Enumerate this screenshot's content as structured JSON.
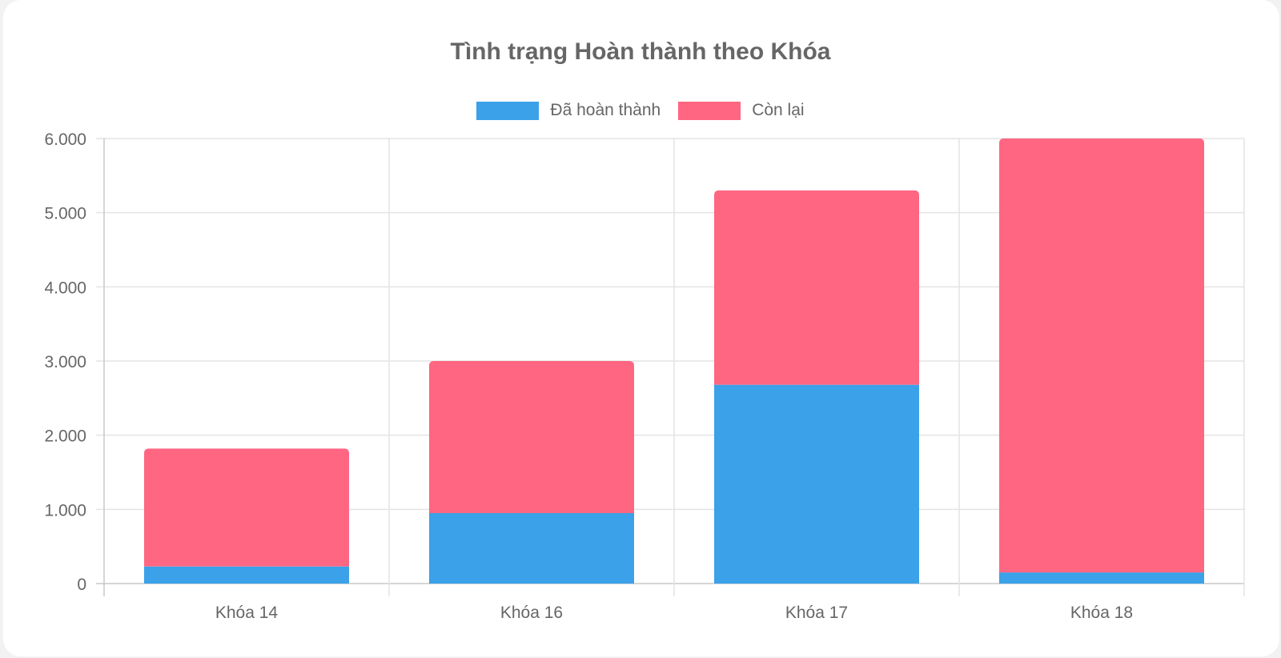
{
  "chart_data": {
    "type": "bar",
    "stacked": true,
    "title": "Tình trạng Hoàn thành theo Khóa",
    "categories": [
      "Khóa 14",
      "Khóa 16",
      "Khóa 17",
      "Khóa 18"
    ],
    "series": [
      {
        "name": "Đã hoàn thành",
        "color": "#3ba1e8",
        "values": [
          230,
          950,
          2680,
          150
        ]
      },
      {
        "name": "Còn lại",
        "color": "#ff6682",
        "values": [
          1590,
          2050,
          2620,
          5850
        ]
      }
    ],
    "ylim": [
      0,
      6000
    ],
    "yticks": [
      "0",
      "1.000",
      "2.000",
      "3.000",
      "4.000",
      "5.000",
      "6.000"
    ],
    "grid": true,
    "legend_position": "top"
  }
}
